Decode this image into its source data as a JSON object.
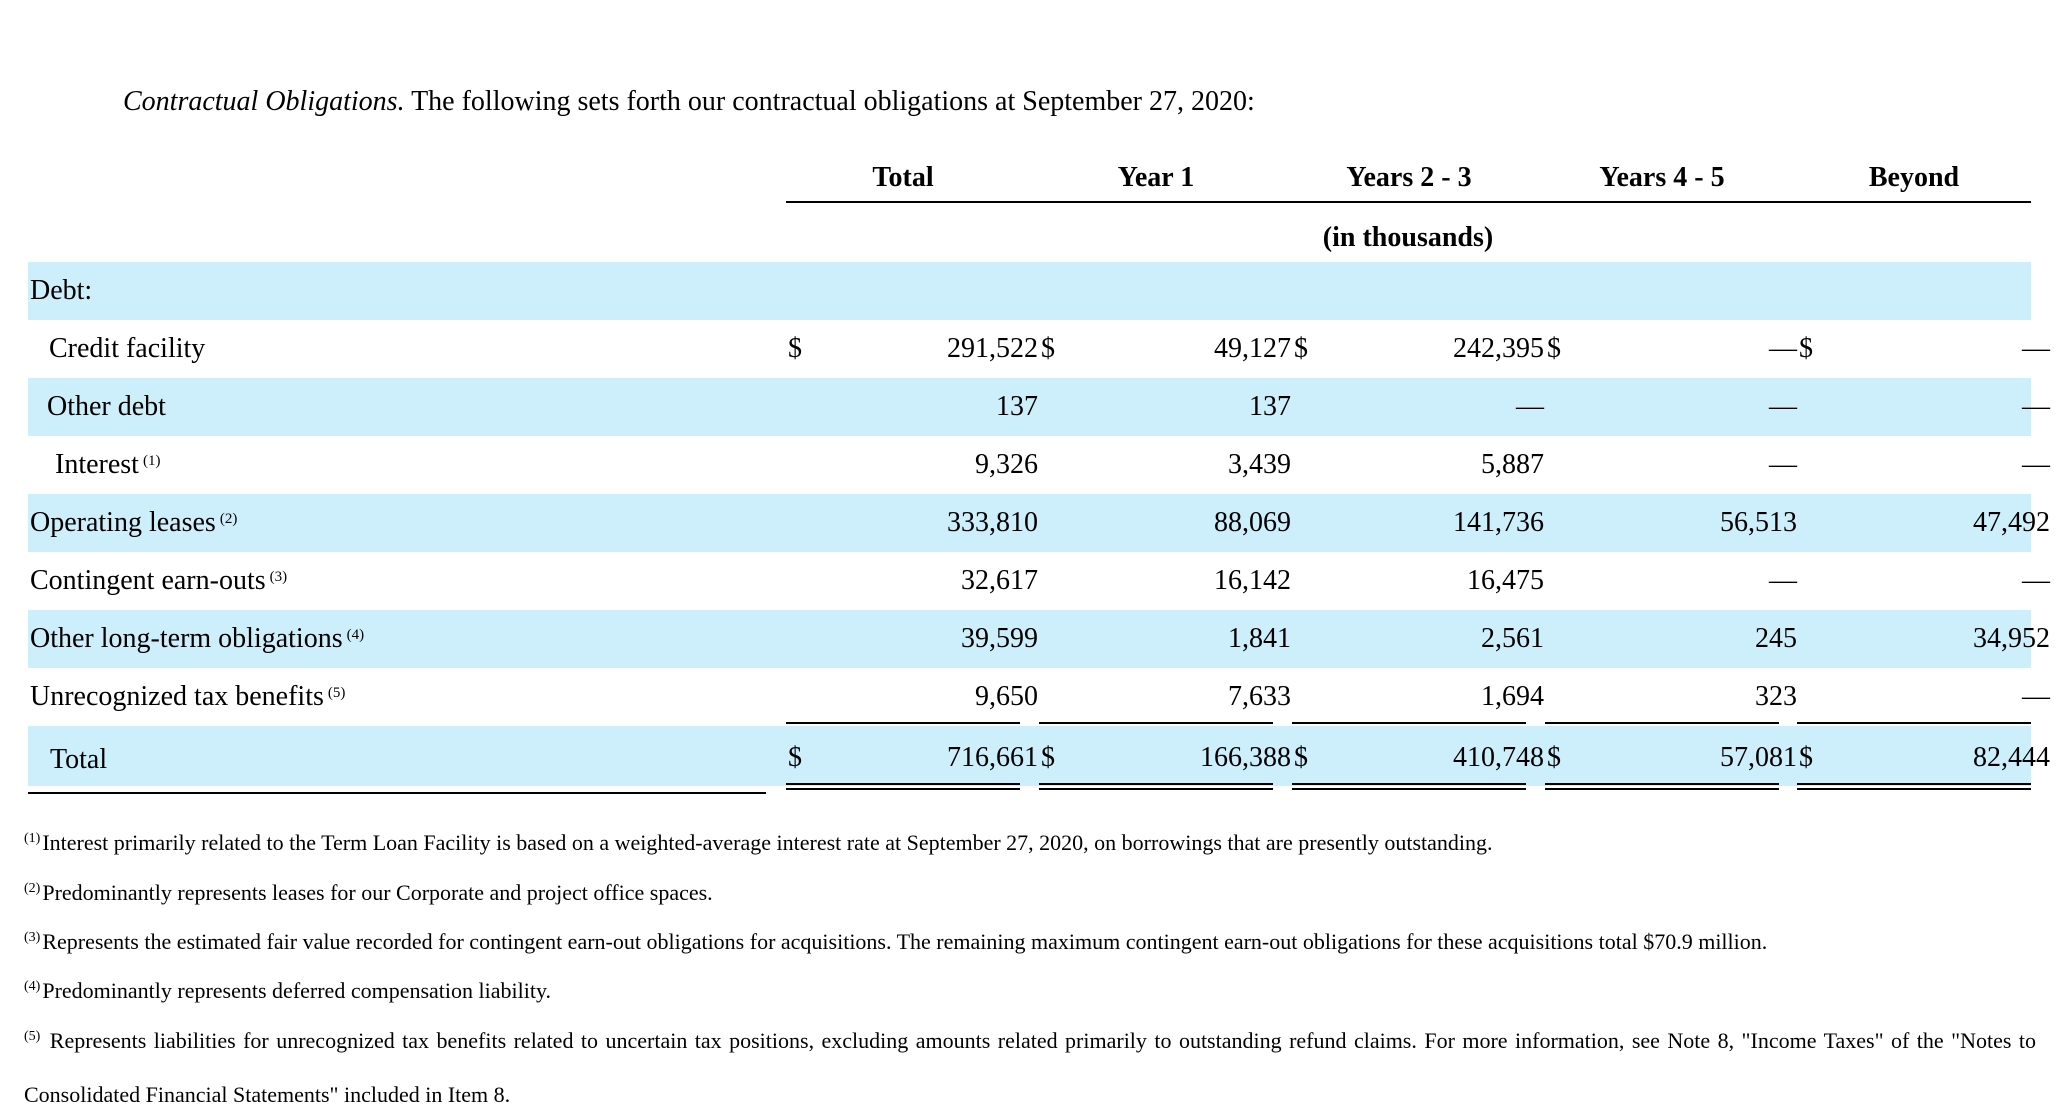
{
  "intro": {
    "lead": "Contractual Obligations.",
    "text": " The following sets forth our contractual obligations at September 27, 2020:"
  },
  "columns": [
    "Total",
    "Year 1",
    "Years 2 - 3",
    "Years 4 - 5",
    "Beyond"
  ],
  "units": "(in thousands)",
  "section_debt": "Debt:",
  "rows": [
    {
      "label": "Credit facility",
      "note": "",
      "values": [
        "291,522",
        "49,127",
        "242,395",
        "—",
        "—"
      ],
      "dollars": true
    },
    {
      "label": "Other debt",
      "note": "",
      "values": [
        "137",
        "137",
        "—",
        "—",
        "—"
      ],
      "dollars": false
    },
    {
      "label": "Interest",
      "note": "(1)",
      "values": [
        "9,326",
        "3,439",
        "5,887",
        "—",
        "—"
      ],
      "dollars": false
    },
    {
      "label": "Operating leases",
      "note": "(2)",
      "values": [
        "333,810",
        "88,069",
        "141,736",
        "56,513",
        "47,492"
      ],
      "dollars": false
    },
    {
      "label": "Contingent earn-outs",
      "note": "(3)",
      "values": [
        "32,617",
        "16,142",
        "16,475",
        "—",
        "—"
      ],
      "dollars": false
    },
    {
      "label": "Other long-term obligations",
      "note": "(4)",
      "values": [
        "39,599",
        "1,841",
        "2,561",
        "245",
        "34,952"
      ],
      "dollars": false
    },
    {
      "label": "Unrecognized tax benefits",
      "note": "(5)",
      "values": [
        "9,650",
        "7,633",
        "1,694",
        "323",
        "—"
      ],
      "dollars": false
    }
  ],
  "total": {
    "label": "Total",
    "values": [
      "716,661",
      "166,388",
      "410,748",
      "57,081",
      "82,444"
    ]
  },
  "currency_symbol": "$",
  "footnotes": [
    {
      "mark": "(1)",
      "text": "Interest primarily related to the Term Loan Facility is based on a weighted-average interest rate at September 27, 2020, on borrowings that are presently outstanding."
    },
    {
      "mark": "(2)",
      "text": "Predominantly represents leases for our Corporate and project office spaces."
    },
    {
      "mark": "(3)",
      "text": "Represents the estimated fair value recorded for contingent earn-out obligations for acquisitions. The remaining maximum contingent earn-out obligations for these acquisitions total $70.9 million."
    },
    {
      "mark": "(4)",
      "text": "Predominantly represents deferred compensation liability."
    },
    {
      "mark": "(5)",
      "text": " Represents liabilities for unrecognized tax benefits related to uncertain tax positions, excluding amounts related primarily to outstanding refund claims. For more information, see Note 8, \"Income Taxes\" of the \"Notes to Consolidated Financial Statements\" included in Item 8."
    }
  ],
  "colors": {
    "row_shade": "#cdeefb",
    "text": "#000000"
  }
}
